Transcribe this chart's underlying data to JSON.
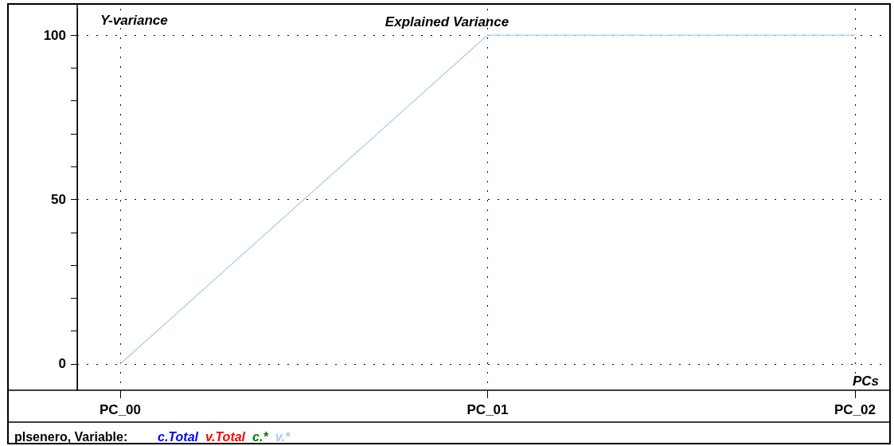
{
  "chart_data": {
    "type": "line",
    "title": "Explained Variance",
    "ylabel": "Y-variance",
    "xlabel": "PCs",
    "legend_title": "plsenero, Variable:",
    "categories": [
      "PC_00",
      "PC_01",
      "PC_02"
    ],
    "series": [
      {
        "name": "c.Total",
        "color": "#0000ff",
        "values": [
          null,
          null,
          null
        ]
      },
      {
        "name": "v.Total",
        "color": "#ff0000",
        "values": [
          null,
          null,
          null
        ]
      },
      {
        "name": "c.*",
        "color": "#008000",
        "values": [
          null,
          null,
          null
        ]
      },
      {
        "name": "v.*",
        "color": "#a6caf0",
        "values": [
          0,
          100,
          100
        ]
      }
    ],
    "ylim": [
      -8,
      108
    ],
    "yticks": [
      0,
      {
        "value": 10,
        "label": null
      },
      {
        "value": 20,
        "label": null
      },
      {
        "value": 30,
        "label": null
      },
      {
        "value": 40,
        "label": null
      },
      50,
      {
        "value": 60,
        "label": null
      },
      {
        "value": 70,
        "label": null
      },
      {
        "value": 80,
        "label": null
      },
      {
        "value": 90,
        "label": null
      },
      100
    ],
    "grid": true,
    "legend": "bottom left",
    "marker": "none",
    "line_style": "solid"
  }
}
